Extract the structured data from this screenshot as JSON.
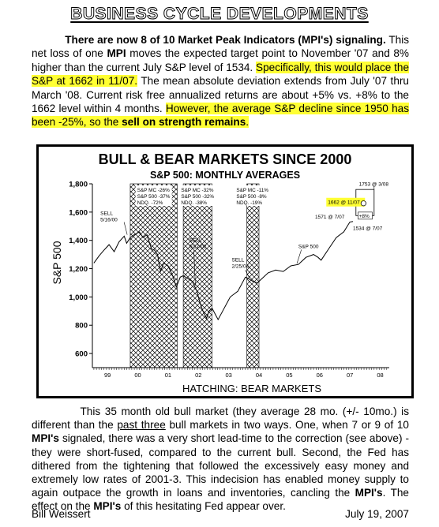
{
  "header": {
    "title": "BUSINESS CYCLE DEVELOPMENTS"
  },
  "intro": {
    "p1_lead": "There are now 8 of 10 Market Peak Indicators (MPI's) signaling.",
    "p1_a": " This net loss of one ",
    "p1_mpi": "MPI",
    "p1_b": " moves the expected target point to November '07 and 8% higher than the current July S&P level of 1534. ",
    "p1_hl1": "Specifically, this would place the S&P at 1662 in 11/07.",
    "p1_c": " The mean absolute deviation extends from July '07 thru March '08. Current risk free annualized returns are about +5% vs. +8% to the 1662 level within 4 months. ",
    "p1_hl2a": "However, the average S&P decline since 1950 has been -25%, so the ",
    "p1_hl2b": "sell on strength remains",
    "p1_hl2c": "."
  },
  "chart_data": {
    "type": "line",
    "title": "BULL & BEAR MARKETS SINCE 2000",
    "subtitle": "S&P 500: MONTHLY AVERAGES",
    "ylabel": "S&P 500",
    "xlabel": "HATCHING: BEAR MARKETS",
    "ylim": [
      500,
      1800
    ],
    "yticks": [
      600,
      800,
      1000,
      1200,
      1400,
      1600,
      1800
    ],
    "ytick_labels": [
      "600",
      "800",
      "1,000",
      "1,200",
      "1,400",
      "1,600",
      "1,800"
    ],
    "xlim": [
      1998.95,
      2008.75
    ],
    "xticks": [
      1999.45,
      2000.45,
      2001.45,
      2002.45,
      2003.45,
      2004.45,
      2005.45,
      2006.45,
      2007.45,
      2008.45
    ],
    "xtick_labels": [
      "99",
      "00",
      "01",
      "02",
      "03",
      "04",
      "05",
      "06",
      "07",
      "08"
    ],
    "grid": false,
    "bear_markets": [
      {
        "start": 2000.2,
        "end": 2001.75,
        "label": [
          "S&P MC -26%",
          "S&P 500 -37%",
          "NDQ. -72%"
        ]
      },
      {
        "start": 2001.95,
        "end": 2002.9,
        "label": [
          "S&P MC -32%",
          "S&P 500 -32%",
          "NDQ. -38%"
        ]
      },
      {
        "start": 2004.05,
        "end": 2004.45,
        "label": [
          "S&P MC -11%",
          "S&P 500 -8%",
          "NDQ. -19%"
        ]
      }
    ],
    "series": [
      {
        "name": "S&P 500",
        "x": [
          1999.0,
          1999.17,
          1999.33,
          1999.5,
          1999.67,
          1999.83,
          2000.0,
          2000.08,
          2000.2,
          2000.33,
          2000.5,
          2000.62,
          2000.75,
          2000.9,
          2001.0,
          2001.1,
          2001.2,
          2001.3,
          2001.45,
          2001.6,
          2001.72,
          2001.85,
          2001.95,
          2002.1,
          2002.25,
          2002.4,
          2002.5,
          2002.6,
          2002.72,
          2002.8,
          2002.9,
          2003.0,
          2003.1,
          2003.25,
          2003.5,
          2003.75,
          2004.0,
          2004.1,
          2004.25,
          2004.4,
          2004.5,
          2004.75,
          2005.0,
          2005.25,
          2005.5,
          2005.75,
          2006.0,
          2006.25,
          2006.4,
          2006.5,
          2006.75,
          2007.0,
          2007.25,
          2007.45,
          2007.55
        ],
        "values": [
          1240,
          1290,
          1330,
          1370,
          1320,
          1390,
          1430,
          1380,
          1420,
          1440,
          1460,
          1420,
          1440,
          1340,
          1330,
          1300,
          1180,
          1240,
          1220,
          1150,
          1070,
          1140,
          1150,
          1130,
          1110,
          1040,
          960,
          900,
          850,
          900,
          920,
          880,
          840,
          900,
          1000,
          1040,
          1140,
          1130,
          1110,
          1100,
          1120,
          1170,
          1190,
          1180,
          1220,
          1230,
          1280,
          1300,
          1280,
          1260,
          1340,
          1420,
          1460,
          1530,
          1534
        ]
      }
    ],
    "annotations": [
      {
        "text": "SELL",
        "text2": "5/16/00"
      },
      {
        "text": "SELL",
        "text2": "5/17/02"
      },
      {
        "text": "SELL",
        "text2": "2/25/04"
      },
      {
        "text": "S&P 500"
      },
      {
        "text": "1753 @ 3/08"
      },
      {
        "text": "1662 @ 11/07"
      },
      {
        "text": "1571 @ 7/07"
      },
      {
        "text": "+8%"
      },
      {
        "text": "1534 @ 7/07"
      }
    ]
  },
  "outro": {
    "a": "This 35 month old bull market (they average 28 mo. (+/- 10mo.) is different than the ",
    "u": "past three",
    "b": " bull markets in two ways. One, when 7 or 9 of 10 ",
    "m1": "MPI's",
    "c": " signaled, there was a very short lead-time to the correction (see above) - they were short-fused, compared to the current bull. Second, the Fed has dithered from the tightening that followed the excessively easy money and extremely low rates of 2001-3. This indecision has enabled money supply to again outpace the growth in loans and inventories, cancling the ",
    "m2": "MPI's",
    "d": ". The effect on the ",
    "m3": "MPI's",
    "e": " of this hesitating Fed appear over."
  },
  "footer": {
    "author": "Bill Weissert",
    "date": "July 19, 2007"
  }
}
